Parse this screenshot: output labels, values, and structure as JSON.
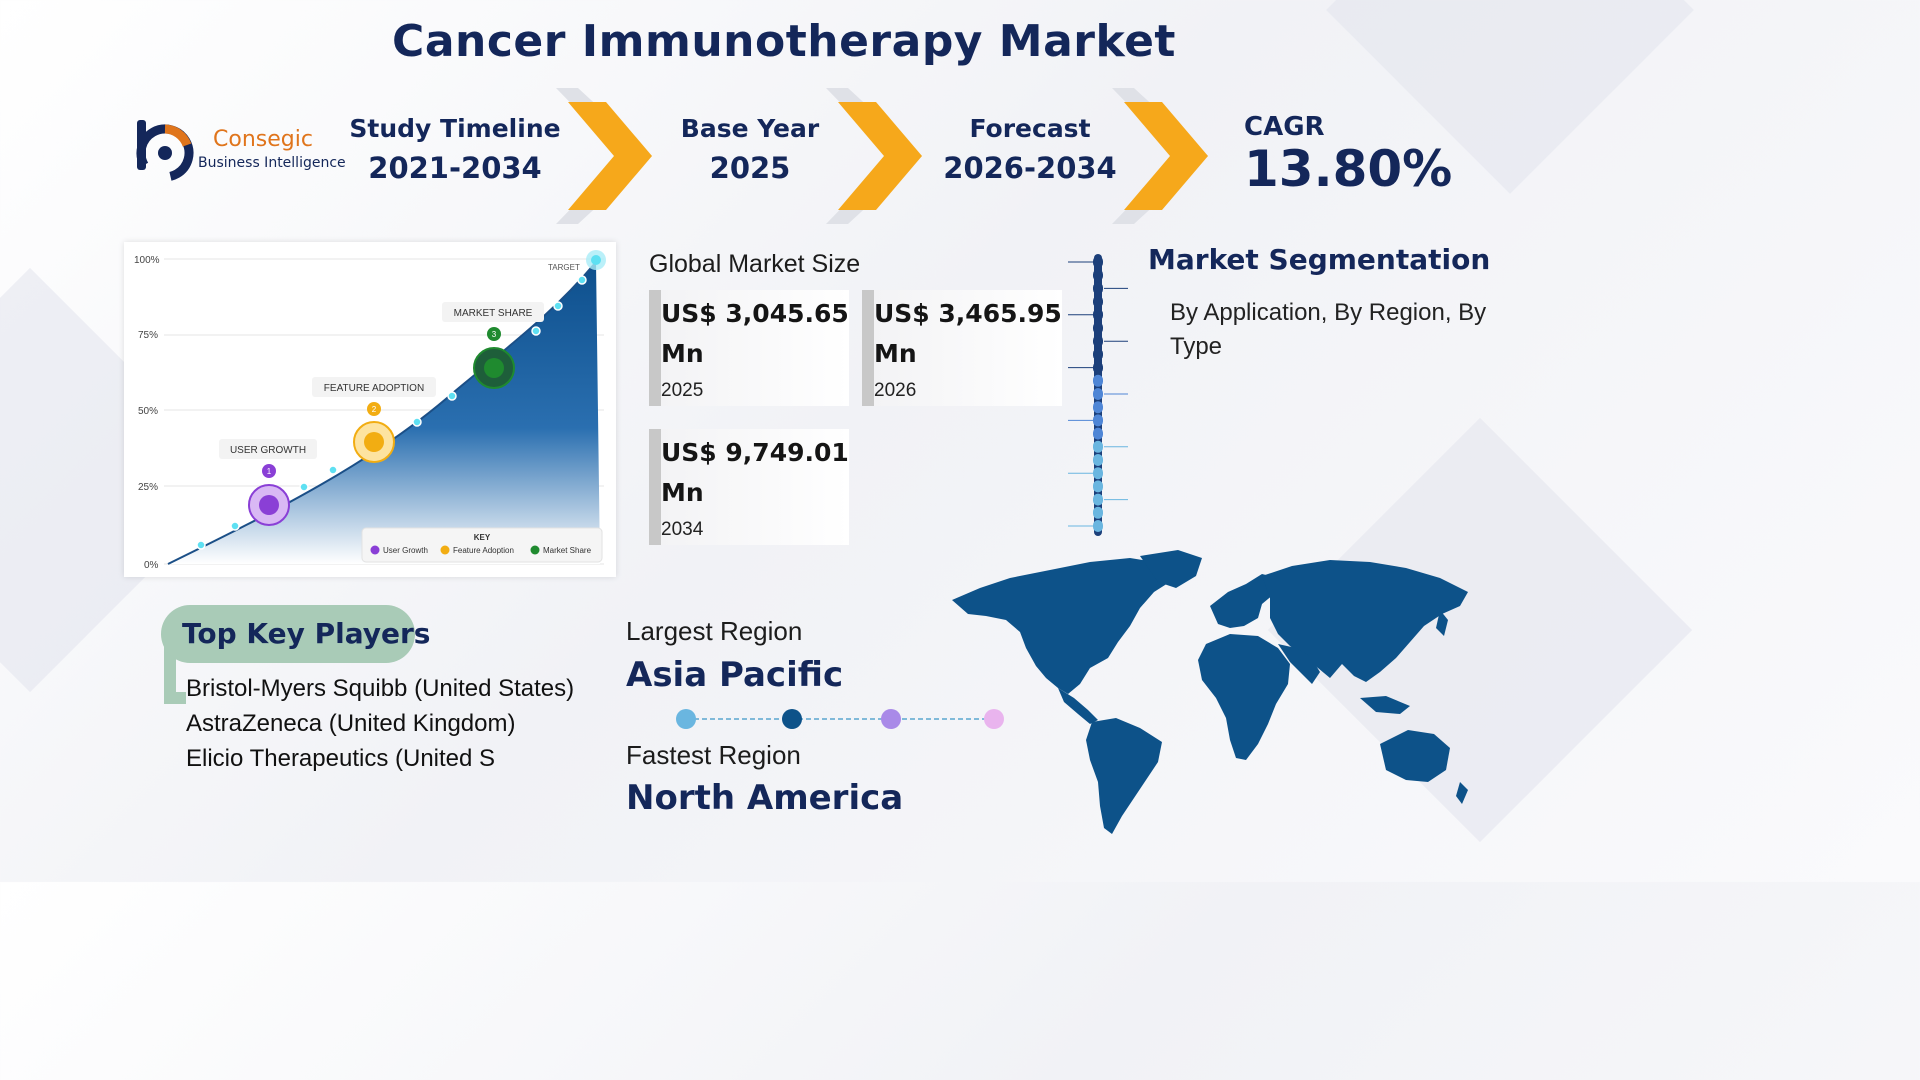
{
  "title": "Cancer Immunotherapy Market",
  "logo": {
    "name": "Consegic",
    "tagline": "Business Intelligence"
  },
  "timeline": [
    {
      "label": "Study Timeline",
      "value": "2021-2034"
    },
    {
      "label": "Base Year",
      "value": "2025"
    },
    {
      "label": "Forecast",
      "value": "2026-2034"
    }
  ],
  "cagr": {
    "label": "CAGR",
    "value": "13.80%"
  },
  "colors": {
    "navy": "#14275a",
    "chevron": "#f6a81b",
    "map": "#0d5289",
    "pill": "#a9cbb7"
  },
  "illustration": {
    "y_ticks": [
      "100%",
      "75%",
      "50%",
      "25%",
      "0%"
    ],
    "target_label": "TARGET",
    "milestones": [
      {
        "num": "1",
        "label": "USER GROWTH",
        "color": "#8a3fd6"
      },
      {
        "num": "2",
        "label": "FEATURE ADOPTION",
        "color": "#f2ad12"
      },
      {
        "num": "3",
        "label": "MARKET SHARE",
        "color": "#1f8a2f"
      }
    ],
    "key_title": "KEY",
    "key_items": [
      "User Growth",
      "Feature Adoption",
      "Market Share"
    ]
  },
  "market_size": {
    "label": "Global Market Size",
    "values": [
      {
        "amount": "US$ 3,045.65",
        "unit": "Mn",
        "year": "2025"
      },
      {
        "amount": "US$ 3,465.95",
        "unit": "Mn",
        "year": "2026"
      },
      {
        "amount": "US$ 9,749.01",
        "unit": "Mn",
        "year": "2034"
      }
    ]
  },
  "segmentation": {
    "title": "Market Segmentation",
    "text": "By Application, By Region, By Type"
  },
  "key_players": {
    "title": "Top Key Players",
    "items": [
      "Bristol-Myers Squibb (United States)",
      "AstraZeneca (United Kingdom)",
      "Elicio Therapeutics (United S"
    ]
  },
  "regions": {
    "largest_label": "Largest Region",
    "largest_value": "Asia Pacific",
    "fastest_label": "Fastest Region",
    "fastest_value": "North America",
    "dot_colors": [
      "#6ab6e0",
      "#0d5289",
      "#a98ae8",
      "#e9b4ee"
    ]
  }
}
